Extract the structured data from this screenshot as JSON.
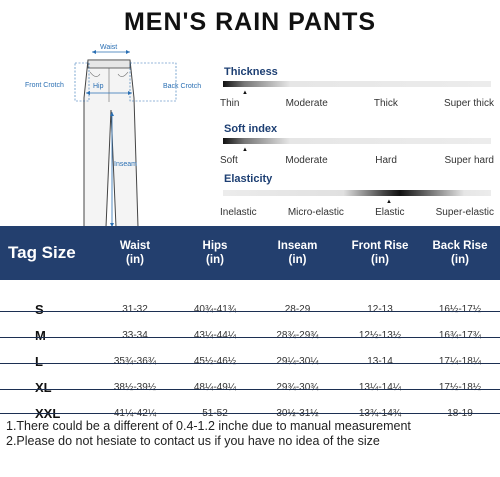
{
  "title": "MEN'S RAIN PANTS",
  "diagram": {
    "waist": "Waist",
    "front_crotch": "Front Crotch",
    "hip": "Hip",
    "back_crotch": "Back Crotch",
    "inseam": "Inseam"
  },
  "properties": [
    {
      "name": "Thickness",
      "levels": [
        "Thin",
        "Moderate",
        "Thick",
        "Super thick"
      ],
      "selected": 0
    },
    {
      "name": "Soft index",
      "levels": [
        "Soft",
        "Moderate",
        "Hard",
        "Super hard"
      ],
      "selected": 0
    },
    {
      "name": "Elasticity",
      "levels": [
        "Inelastic",
        "Micro-elastic",
        "Elastic",
        "Super-elastic"
      ],
      "selected": 2
    }
  ],
  "table": {
    "headers": [
      "Tag Size",
      "Waist",
      "(in)",
      "Hips",
      "(in)",
      "Inseam",
      "(in)",
      "Front Rise",
      "(in)",
      "Back Rise",
      "(in)"
    ],
    "rows": [
      [
        "S",
        "31-32",
        "40¾-41¾",
        "28-29",
        "12-13",
        "16½-17½"
      ],
      [
        "M",
        "33-34",
        "43¼-44¼",
        "28¾-29¾",
        "12½-13½",
        "16¾-17¾"
      ],
      [
        "L",
        "35¾-36¾",
        "45½-46½",
        "29¼-30¼",
        "13-14",
        "17¼-18¼"
      ],
      [
        "XL",
        "38½-39½",
        "48¼-49¼",
        "29¾-30¾",
        "13¼-14¼",
        "17½-18½"
      ],
      [
        "XXL",
        "41¼-42¼",
        "51-52",
        "30½-31½",
        "13¾-14¾",
        "18-19"
      ]
    ]
  },
  "notes": [
    "1.There could be a different of 0.4-1.2 inche due to manual measurement",
    "2.Please do not hesiate to contact us if you have no idea of the size"
  ],
  "colors": {
    "header_bg": "#233f6e",
    "accent_text": "#1d3f73",
    "diagram_label": "#2a6fb3"
  },
  "icons": [
    "pants-diagram-icon",
    "selection-arrow-icon"
  ]
}
